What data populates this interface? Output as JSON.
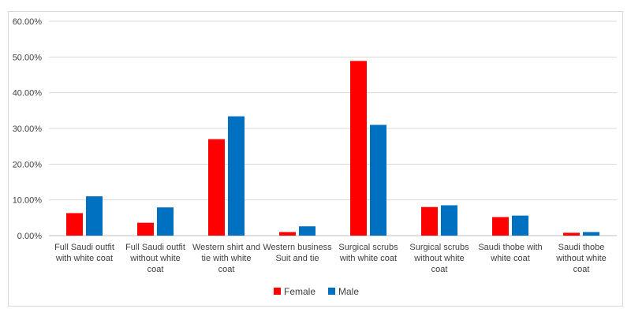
{
  "chart_data": {
    "type": "bar",
    "title": "",
    "xlabel": "",
    "ylabel": "",
    "ylim": [
      0,
      60
    ],
    "y_ticks": [
      "0.00%",
      "10.00%",
      "20.00%",
      "30.00%",
      "40.00%",
      "50.00%",
      "60.00%"
    ],
    "grid": true,
    "legend_position": "bottom",
    "categories": [
      [
        "Full Saudi outfit",
        "with white coat"
      ],
      [
        "Full Saudi outfit",
        "without white",
        "coat"
      ],
      [
        "Western shirt and",
        "tie with white",
        "coat"
      ],
      [
        "Western business",
        "Suit and tie"
      ],
      [
        "Surgical scrubs",
        "with white coat"
      ],
      [
        "Surgical scrubs",
        "without white",
        "coat"
      ],
      [
        "Saudi thobe with",
        "white coat"
      ],
      [
        "Saudi thobe",
        "without white",
        "coat"
      ]
    ],
    "series": [
      {
        "name": "Female",
        "color": "#ff0000",
        "values": [
          6.3,
          3.6,
          27.0,
          1.0,
          48.9,
          8.0,
          5.2,
          0.8
        ]
      },
      {
        "name": "Male",
        "color": "#0070c0",
        "values": [
          11.0,
          7.9,
          33.4,
          2.6,
          31.0,
          8.5,
          5.6,
          1.0
        ]
      }
    ]
  }
}
